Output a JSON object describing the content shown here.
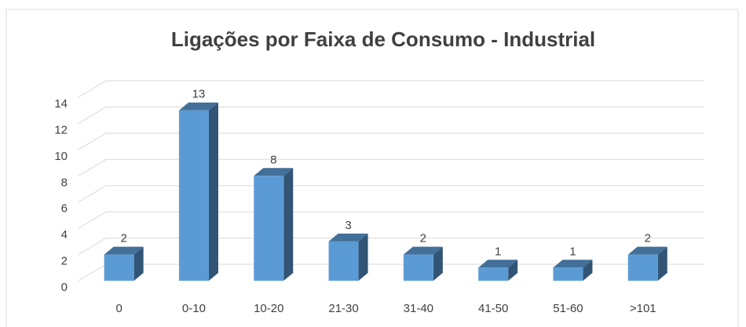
{
  "chart_data": {
    "type": "bar3d",
    "title": "Ligações por Faixa de Consumo - Industrial",
    "categories": [
      "0",
      "0-10",
      "10-20",
      "21-30",
      "31-40",
      "41-50",
      "51-60",
      ">101"
    ],
    "values": [
      2,
      13,
      8,
      3,
      2,
      1,
      1,
      2
    ],
    "color": "#5b9bd5",
    "ylim": [
      0,
      14
    ],
    "yticks": [
      0,
      2,
      4,
      6,
      8,
      10,
      12,
      14
    ],
    "grid": true
  }
}
